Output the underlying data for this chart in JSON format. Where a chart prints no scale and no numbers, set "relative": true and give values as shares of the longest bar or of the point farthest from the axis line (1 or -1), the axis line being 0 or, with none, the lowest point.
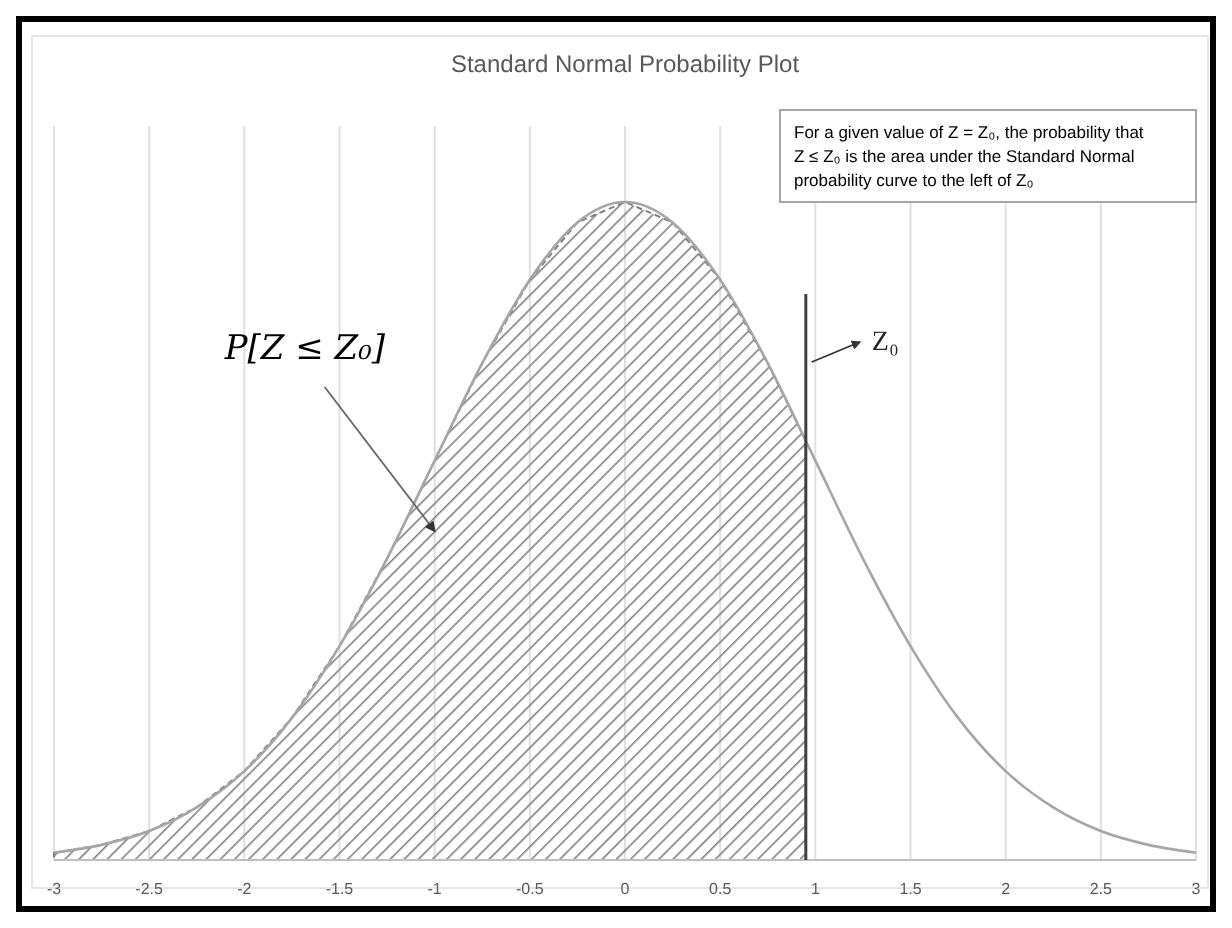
{
  "chart_data": {
    "type": "line",
    "title": "Standard Normal Probability Plot",
    "relative": true,
    "xlim": [
      -3,
      3
    ],
    "xticks": [
      -3,
      -2.5,
      -2,
      -1.5,
      -1,
      -0.5,
      0,
      0.5,
      1,
      1.5,
      2,
      2.5,
      3
    ],
    "grid": "x",
    "marker": "none",
    "series": [
      {
        "type": "area",
        "color": "#808080",
        "x": [
          -3,
          -2.75,
          -2.5,
          -2.25,
          -2,
          -1.75,
          -1.5,
          -1.25,
          -1,
          -0.75,
          -0.5,
          -0.25,
          0,
          0.25,
          0.5,
          0.75,
          0.95
        ],
        "values": [
          0.011,
          0.023,
          0.044,
          0.08,
          0.135,
          0.216,
          0.325,
          0.458,
          0.607,
          0.755,
          0.882,
          0.969,
          1,
          0.969,
          0.882,
          0.755,
          0.637
        ]
      },
      {
        "color": "#a6a6a6",
        "x": [
          -3,
          -2.75,
          -2.5,
          -2.25,
          -2,
          -1.75,
          -1.5,
          -1.25,
          -1,
          -0.75,
          -0.5,
          -0.25,
          0,
          0.25,
          0.5,
          0.75,
          1,
          1.25,
          1.5,
          1.75,
          2,
          2.25,
          2.5,
          2.75,
          3
        ],
        "values": [
          0.011,
          0.023,
          0.044,
          0.08,
          0.135,
          0.216,
          0.325,
          0.458,
          0.607,
          0.755,
          0.882,
          0.969,
          1,
          0.969,
          0.882,
          0.755,
          0.607,
          0.458,
          0.325,
          0.216,
          0.135,
          0.08,
          0.044,
          0.023,
          0.011
        ]
      }
    ],
    "ref_lines": [
      {
        "axis": "x",
        "value": 0.95,
        "label": "Z₀",
        "color": "#404040"
      }
    ],
    "annotations": [
      "P[Z ≤ Z₀]",
      "For a given value of Z = Z₀, the probability that Z ≤ Z₀ is the area under the Standard Normal probability curve to the left of Z₀"
    ]
  }
}
